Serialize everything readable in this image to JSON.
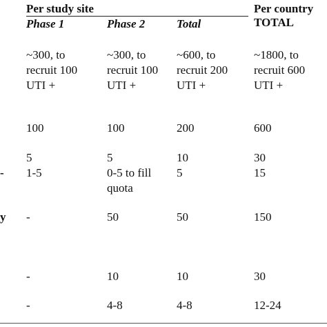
{
  "header": {
    "group_label": "Per study site",
    "country_label_line1": "Per country",
    "country_label_line2": "TOTAL",
    "columns": [
      "Phase 1",
      "Phase 2",
      "Total"
    ]
  },
  "rows": [
    {
      "label_fragment": "",
      "phase1": "~300, to\nrecruit 100\nUTI +",
      "phase2": "~300, to\nrecruit 100\nUTI +",
      "total": "~600, to\nrecruit 200\nUTI +",
      "country": "~1800, to\nrecruit 600\nUTI +"
    },
    {
      "label_fragment": "",
      "phase1": "100",
      "phase2": "100",
      "total": "200",
      "country": "600"
    },
    {
      "label_fragment": "",
      "phase1": "5",
      "phase2": "5",
      "total": "10",
      "country": "30"
    },
    {
      "label_fragment": "-",
      "phase1": "1-5",
      "phase2": "0-5 to fill\nquota",
      "total": "5",
      "country": "15"
    },
    {
      "label_fragment": "y",
      "phase1": "-",
      "phase2": "50",
      "total": "50",
      "country": "150"
    },
    {
      "label_fragment": "",
      "phase1": "-",
      "phase2": "10",
      "total": "10",
      "country": "30"
    },
    {
      "label_fragment": "",
      "phase1": "-",
      "phase2": "4-8",
      "total": "4-8",
      "country": "12-24"
    }
  ]
}
